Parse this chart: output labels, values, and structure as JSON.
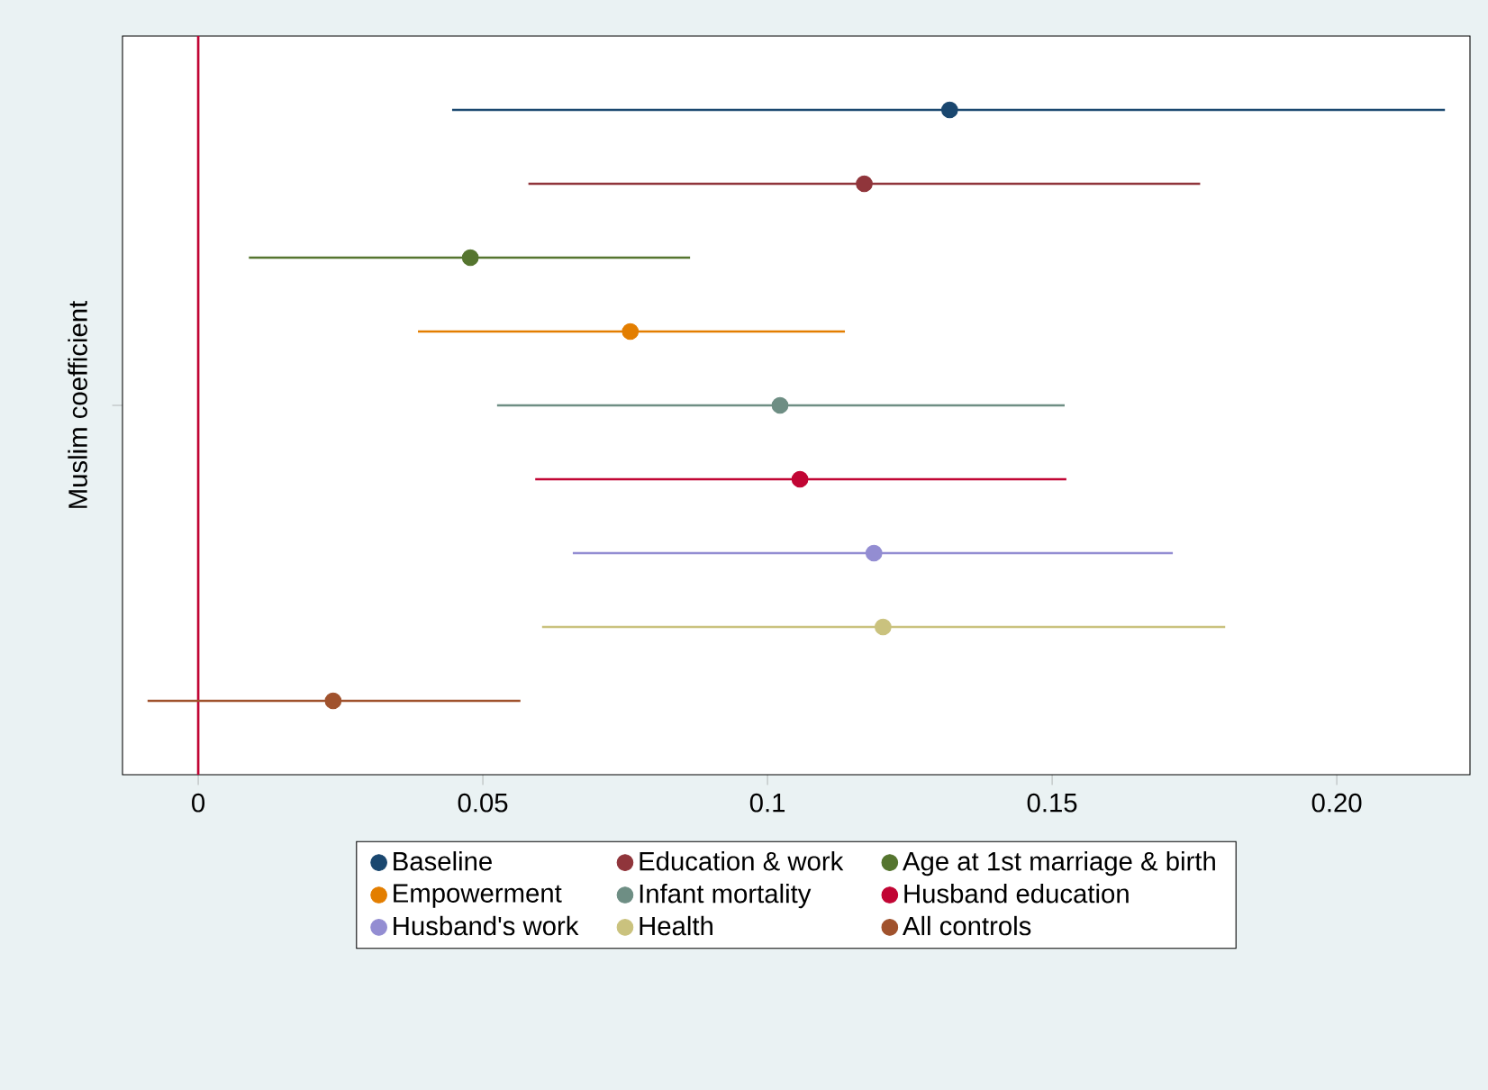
{
  "chart_data": {
    "type": "scatter",
    "orientation": "horizontal",
    "ylabel": "Muslim coefficient",
    "categories": [
      null,
      null,
      null,
      null,
      null,
      null,
      null,
      null,
      null
    ],
    "series": [
      {
        "name": "Baseline",
        "color": "#1a476f",
        "values": [
          0.132,
          null,
          null,
          null,
          null,
          null,
          null,
          null,
          null
        ],
        "errors": [
          [
            0.0446,
            0.219
          ],
          null,
          null,
          null,
          null,
          null,
          null,
          null,
          null
        ]
      },
      {
        "name": "Education & work",
        "color": "#90353b",
        "values": [
          null,
          0.117,
          null,
          null,
          null,
          null,
          null,
          null,
          null
        ],
        "errors": [
          null,
          [
            0.058,
            0.176
          ],
          null,
          null,
          null,
          null,
          null,
          null,
          null
        ]
      },
      {
        "name": "Age at 1st marriage & birth",
        "color": "#55752f",
        "values": [
          null,
          null,
          0.0478,
          null,
          null,
          null,
          null,
          null,
          null
        ],
        "errors": [
          null,
          null,
          [
            0.0089,
            0.0864
          ],
          null,
          null,
          null,
          null,
          null,
          null
        ]
      },
      {
        "name": "Empowerment",
        "color": "#e37e00",
        "values": [
          null,
          null,
          null,
          0.0759,
          null,
          null,
          null,
          null,
          null
        ],
        "errors": [
          null,
          null,
          null,
          [
            0.0386,
            0.1136
          ],
          null,
          null,
          null,
          null,
          null
        ]
      },
      {
        "name": "Infant mortality",
        "color": "#6e8e84",
        "values": [
          null,
          null,
          null,
          null,
          0.1022,
          null,
          null,
          null,
          null
        ],
        "errors": [
          null,
          null,
          null,
          null,
          [
            0.0525,
            0.1522
          ],
          null,
          null,
          null,
          null
        ]
      },
      {
        "name": "Husband education",
        "color": "#c10534",
        "values": [
          null,
          null,
          null,
          null,
          null,
          0.1057,
          null,
          null,
          null
        ],
        "errors": [
          null,
          null,
          null,
          null,
          null,
          [
            0.0592,
            0.1525
          ],
          null,
          null,
          null
        ]
      },
      {
        "name": "Husband's work",
        "color": "#938dd2",
        "values": [
          null,
          null,
          null,
          null,
          null,
          null,
          0.1187,
          null,
          null
        ],
        "errors": [
          null,
          null,
          null,
          null,
          null,
          null,
          [
            0.0658,
            0.1712
          ],
          null,
          null
        ]
      },
      {
        "name": "Health",
        "color": "#cac27e",
        "values": [
          null,
          null,
          null,
          null,
          null,
          null,
          null,
          0.1203,
          null
        ],
        "errors": [
          null,
          null,
          null,
          null,
          null,
          null,
          null,
          [
            0.0604,
            0.1804
          ],
          null
        ]
      },
      {
        "name": "All controls",
        "color": "#a0522d",
        "values": [
          null,
          null,
          null,
          null,
          null,
          null,
          null,
          null,
          0.0237
        ],
        "errors": [
          null,
          null,
          null,
          null,
          null,
          null,
          null,
          null,
          [
            -0.0089,
            0.0566
          ]
        ]
      }
    ],
    "xlim": [
      -0.0133,
      0.2234
    ],
    "xticks": [
      0,
      0.05,
      0.1,
      0.15,
      {
        "value": 0.2,
        "label": "0.20"
      }
    ],
    "ref_lines": [
      {
        "axis": "x",
        "value": 0,
        "color": "#c10534"
      }
    ],
    "grid": false,
    "legend": "bottom",
    "marker": "circle"
  }
}
